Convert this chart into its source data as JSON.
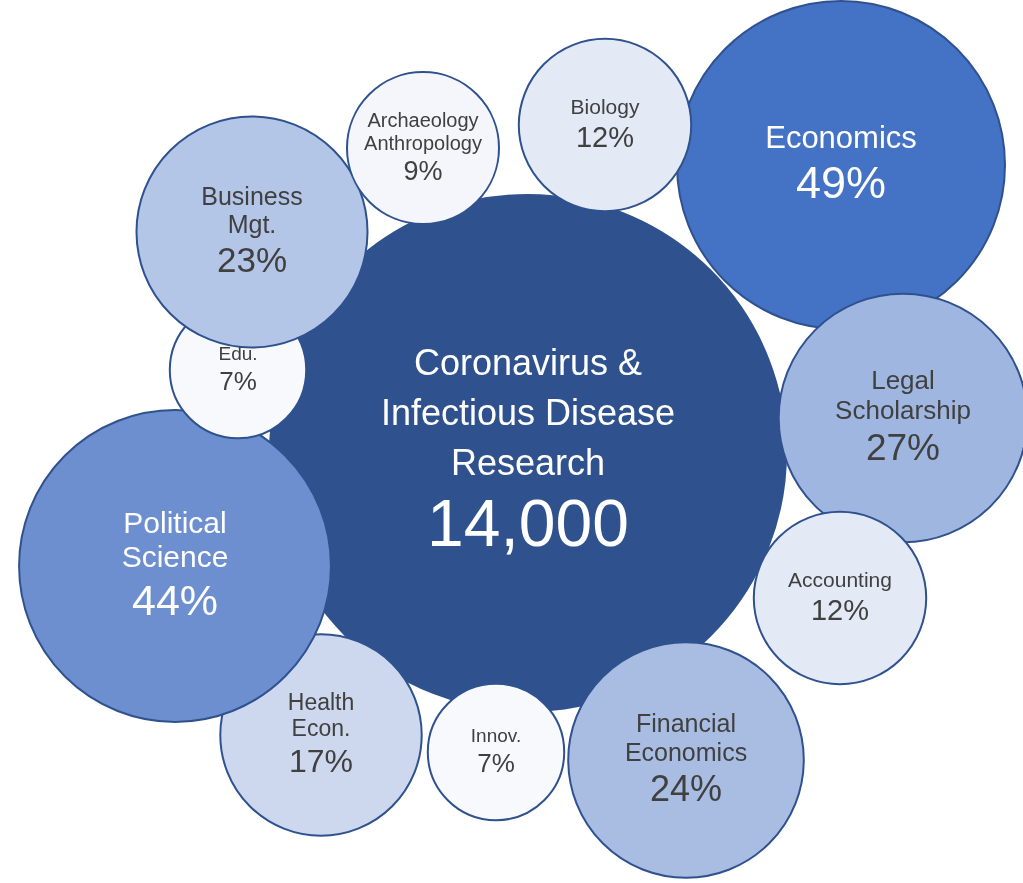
{
  "chart_data": {
    "type": "other",
    "title": "Coronavirus & Infectious Disease Research",
    "annotations": [
      "14,000"
    ],
    "categories": [
      "Economics",
      "Legal Scholarship",
      "Accounting",
      "Financial Economics",
      "Innov.",
      "Health Econ.",
      "Political Science",
      "Edu.",
      "Business Mgt.",
      "Archaeology Anthropology",
      "Biology"
    ],
    "values": [
      49,
      27,
      12,
      24,
      7,
      17,
      44,
      7,
      23,
      9,
      12
    ],
    "value_labels": [
      "49%",
      "27%",
      "12%",
      "24%",
      "7%",
      "17%",
      "44%",
      "7%",
      "23%",
      "9%",
      "12%"
    ],
    "colors": [
      "#4472c4",
      "#9fb6e0",
      "#e3e9f5",
      "#a9bde3",
      "#f8f9fc",
      "#cdd8ee",
      "#6d8fd0",
      "#f7f9fc",
      "#b4c6e7",
      "#f4f6fb",
      "#e3e9f5"
    ]
  }
}
